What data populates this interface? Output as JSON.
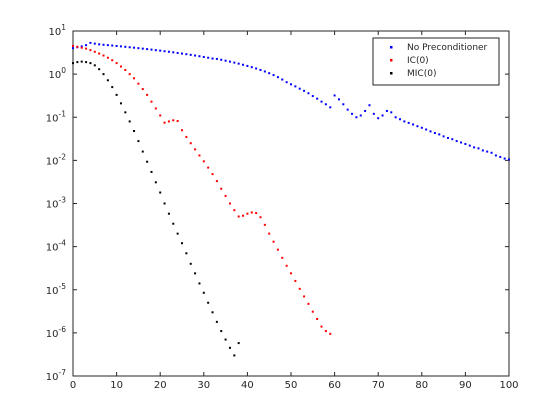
{
  "chart_data": {
    "type": "scatter",
    "title": "",
    "xlabel": "",
    "ylabel": "",
    "xlim": [
      0,
      100
    ],
    "ylim": [
      1e-07,
      10
    ],
    "yscale": "log",
    "grid": false,
    "legend_position": "top-right",
    "x_ticks": [
      0,
      10,
      20,
      30,
      40,
      50,
      60,
      70,
      80,
      90,
      100
    ],
    "y_ticks": [
      {
        "exp": "1",
        "value": 10
      },
      {
        "exp": "0",
        "value": 1
      },
      {
        "exp": "-1",
        "value": 0.1
      },
      {
        "exp": "-2",
        "value": 0.01
      },
      {
        "exp": "-3",
        "value": 0.001
      },
      {
        "exp": "-4",
        "value": 0.0001
      },
      {
        "exp": "-5",
        "value": 1e-05
      },
      {
        "exp": "-6",
        "value": 1e-06
      },
      {
        "exp": "-7",
        "value": 1e-07
      }
    ],
    "y_tick_base": "10",
    "series": [
      {
        "name": "No Preconditioner",
        "color": "#0000ff",
        "x": [
          0,
          1,
          2,
          3,
          4,
          5,
          6,
          7,
          8,
          9,
          10,
          11,
          12,
          13,
          14,
          15,
          16,
          17,
          18,
          19,
          20,
          21,
          22,
          23,
          24,
          25,
          26,
          27,
          28,
          29,
          30,
          31,
          32,
          33,
          34,
          35,
          36,
          37,
          38,
          39,
          40,
          41,
          42,
          43,
          44,
          45,
          46,
          47,
          48,
          49,
          50,
          51,
          52,
          53,
          54,
          55,
          56,
          57,
          58,
          59,
          60,
          61,
          62,
          63,
          64,
          65,
          66,
          67,
          68,
          69,
          70,
          71,
          72,
          73,
          74,
          75,
          76,
          77,
          78,
          79,
          80,
          81,
          82,
          83,
          84,
          85,
          86,
          87,
          88,
          89,
          90,
          91,
          92,
          93,
          94,
          95,
          96,
          97,
          98,
          99,
          100
        ],
        "y": [
          4.0,
          4.2,
          4.4,
          4.7,
          5.3,
          5.1,
          4.9,
          4.8,
          4.7,
          4.6,
          4.5,
          4.4,
          4.3,
          4.2,
          4.1,
          4.0,
          3.9,
          3.8,
          3.7,
          3.6,
          3.5,
          3.4,
          3.3,
          3.2,
          3.1,
          3.0,
          2.9,
          2.8,
          2.7,
          2.6,
          2.5,
          2.4,
          2.3,
          2.25,
          2.15,
          2.05,
          1.95,
          1.85,
          1.75,
          1.65,
          1.55,
          1.45,
          1.35,
          1.25,
          1.15,
          1.05,
          0.95,
          0.85,
          0.75,
          0.65,
          0.58,
          0.52,
          0.46,
          0.41,
          0.36,
          0.31,
          0.27,
          0.23,
          0.2,
          0.17,
          0.32,
          0.26,
          0.2,
          0.15,
          0.12,
          0.1,
          0.11,
          0.14,
          0.19,
          0.12,
          0.095,
          0.11,
          0.14,
          0.13,
          0.1,
          0.09,
          0.08,
          0.074,
          0.068,
          0.062,
          0.057,
          0.052,
          0.047,
          0.043,
          0.04,
          0.036,
          0.033,
          0.031,
          0.028,
          0.026,
          0.024,
          0.022,
          0.02,
          0.019,
          0.017,
          0.016,
          0.015,
          0.013,
          0.012,
          0.011,
          0.0105
        ]
      },
      {
        "name": "IC(0)",
        "color": "#ff0000",
        "x": [
          0,
          1,
          2,
          3,
          4,
          5,
          6,
          7,
          8,
          9,
          10,
          11,
          12,
          13,
          14,
          15,
          16,
          17,
          18,
          19,
          20,
          21,
          22,
          23,
          24,
          25,
          26,
          27,
          28,
          29,
          30,
          31,
          32,
          33,
          34,
          35,
          36,
          37,
          38,
          39,
          40,
          41,
          42,
          43,
          44,
          45,
          46,
          47,
          48,
          49,
          50,
          51,
          52,
          53,
          54,
          55,
          56,
          57,
          58,
          59
        ],
        "y": [
          4.5,
          4.3,
          4.1,
          3.9,
          3.6,
          3.3,
          3.0,
          2.7,
          2.4,
          2.1,
          1.8,
          1.5,
          1.25,
          1.0,
          0.8,
          0.6,
          0.45,
          0.33,
          0.23,
          0.16,
          0.11,
          0.075,
          0.08,
          0.085,
          0.082,
          0.05,
          0.035,
          0.025,
          0.018,
          0.013,
          0.0095,
          0.0068,
          0.0048,
          0.0033,
          0.0022,
          0.0015,
          0.001,
          0.0007,
          0.0005,
          0.00052,
          0.00058,
          0.00062,
          0.0006,
          0.00048,
          0.00032,
          0.0002,
          0.00013,
          8.5e-05,
          5.5e-05,
          3.6e-05,
          2.4e-05,
          1.6e-05,
          1.05e-05,
          7e-06,
          4.7e-06,
          3.1e-06,
          2.1e-06,
          1.4e-06,
          1.1e-06,
          9.5e-07
        ]
      },
      {
        "name": "MIC(0)",
        "color": "#000000",
        "x": [
          0,
          1,
          2,
          3,
          4,
          5,
          6,
          7,
          8,
          9,
          10,
          11,
          12,
          13,
          14,
          15,
          16,
          17,
          18,
          19,
          20,
          21,
          22,
          23,
          24,
          25,
          26,
          27,
          28,
          29,
          30,
          31,
          32,
          33,
          34,
          35,
          36,
          37,
          38
        ],
        "y": [
          1.8,
          1.9,
          1.95,
          1.9,
          1.8,
          1.6,
          1.3,
          1.0,
          0.72,
          0.5,
          0.33,
          0.21,
          0.13,
          0.08,
          0.048,
          0.028,
          0.016,
          0.0093,
          0.0054,
          0.0031,
          0.0018,
          0.001,
          0.00058,
          0.00034,
          0.0002,
          0.00012,
          7e-05,
          4e-05,
          2.4e-05,
          1.4e-05,
          8.5e-06,
          5e-06,
          3e-06,
          1.8e-06,
          1.1e-06,
          7e-07,
          4.5e-07,
          3e-07,
          5.8e-07
        ]
      }
    ]
  }
}
